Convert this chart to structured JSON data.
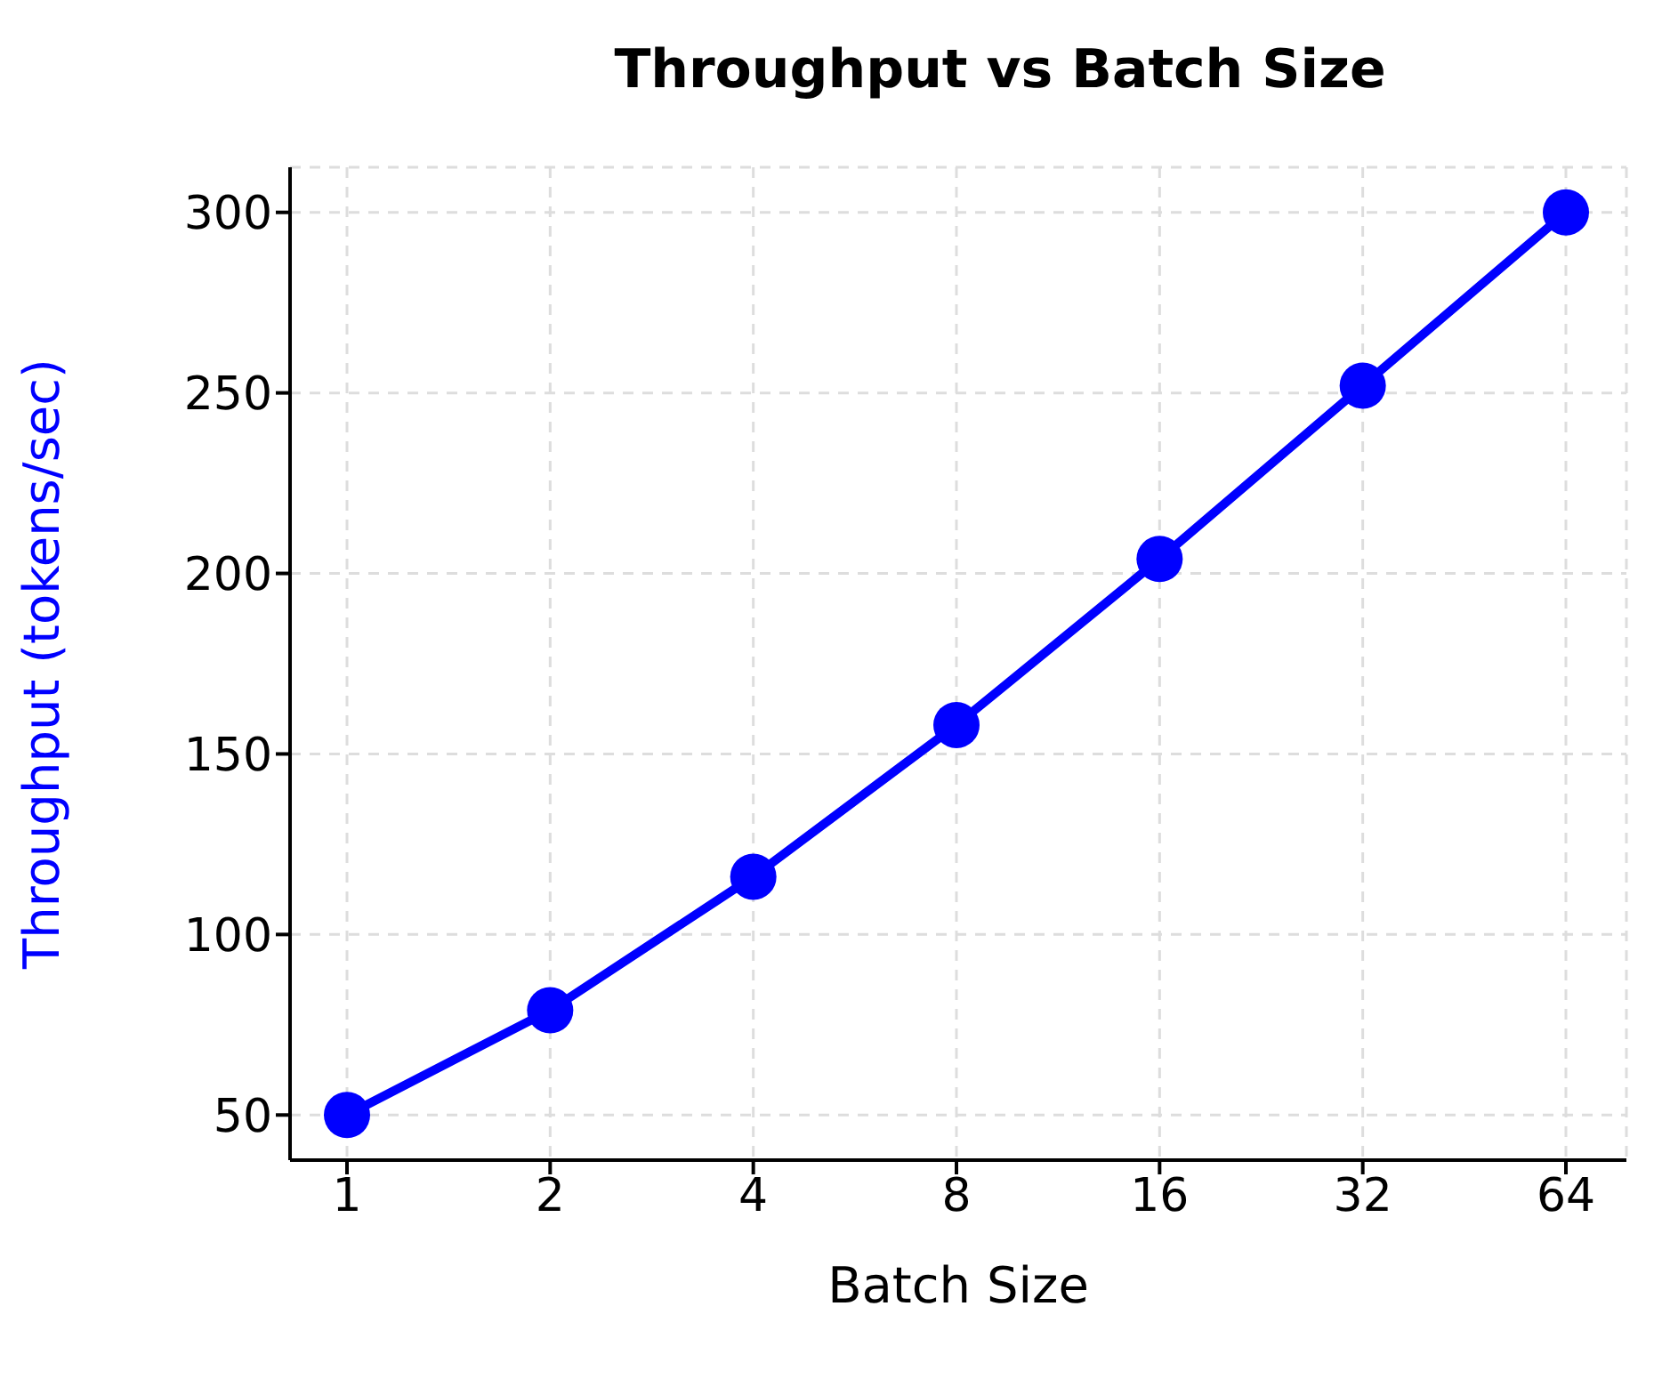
{
  "chart_data": {
    "type": "line",
    "title": "Throughput vs Batch Size",
    "xlabel": "Batch Size",
    "ylabel": "Throughput (tokens/sec)",
    "categories": [
      "1",
      "2",
      "4",
      "8",
      "16",
      "32",
      "64"
    ],
    "series": [
      {
        "color": "#0000ff",
        "values": [
          50,
          79,
          116,
          158,
          204,
          252,
          300
        ]
      }
    ],
    "ylim": [
      37.5,
      312.5
    ],
    "yticks": [
      50,
      100,
      150,
      200,
      250,
      300
    ],
    "grid": true,
    "marker": "circle",
    "line_style": "solid"
  }
}
